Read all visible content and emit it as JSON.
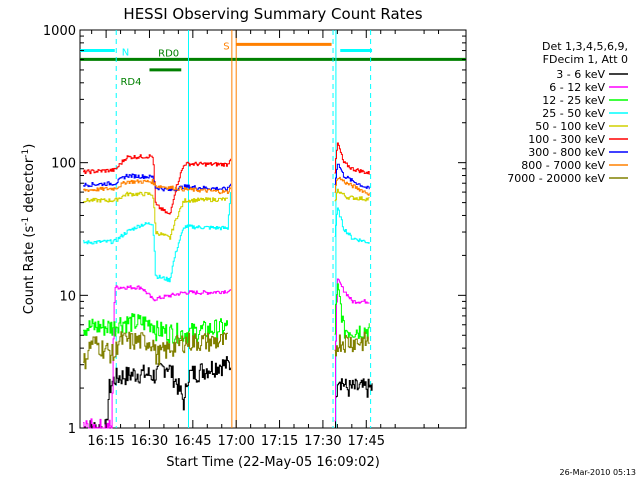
{
  "chart_data": {
    "type": "line",
    "title": "HESSI Observing Summary Count Rates",
    "xlabel": "Start Time (22-May-05 16:09:02)",
    "ylabel_main": "Count Rate (s",
    "ylabel_sup1": "-1",
    "ylabel_mid": " detector",
    "ylabel_sup2": "-1",
    "ylabel_end": ")",
    "ylog": true,
    "ylim": [
      1,
      1000
    ],
    "xlim_minutes": [
      -9.033,
      124.5
    ],
    "x_tick_labels": [
      "16:15",
      "16:30",
      "16:45",
      "17:00",
      "17:15",
      "17:30",
      "17:45"
    ],
    "x_tick_minutes": [
      0,
      15,
      30,
      45,
      60,
      75,
      90
    ],
    "y_tick_values": [
      1,
      10,
      100,
      1000
    ],
    "y_tick_labels": [
      "1",
      "10",
      "100",
      "1000"
    ],
    "legend_header": [
      "Det 1,3,4,5,6,9,",
      "FDecim 1, Att 0"
    ],
    "legend_position": "right",
    "series": [
      {
        "name": "3 - 6 keV",
        "color": "#000000",
        "segments": [
          [
            [
              -8,
              1
            ],
            [
              0,
              1
            ],
            [
              1,
              2
            ],
            [
              3,
              2.4
            ],
            [
              11,
              2.6
            ],
            [
              17,
              2.5
            ],
            [
              21,
              3
            ],
            [
              23,
              2.5
            ],
            [
              27,
              1.5
            ],
            [
              28,
              2.5
            ],
            [
              39,
              3
            ],
            [
              43,
              3
            ]
          ],
          [
            [
              79,
              1
            ],
            [
              80,
              2.5
            ],
            [
              83,
              2
            ],
            [
              89,
              2
            ],
            [
              92,
              2
            ]
          ]
        ]
      },
      {
        "name": "6 - 12 keV",
        "color": "#ff00ff",
        "segments": [
          [
            [
              -8,
              1
            ],
            [
              2,
              1
            ],
            [
              3,
              11.5
            ],
            [
              12,
              11.5
            ],
            [
              16,
              9.3
            ],
            [
              27,
              10.5
            ],
            [
              35,
              10.5
            ],
            [
              43,
              10.8
            ]
          ],
          [
            [
              79,
              1
            ],
            [
              80,
              13
            ],
            [
              82,
              11
            ],
            [
              85,
              9
            ],
            [
              91,
              9
            ]
          ]
        ]
      },
      {
        "name": "12 - 25 keV",
        "color": "#00ff00",
        "segments": [
          [
            [
              -8,
              5.8
            ],
            [
              3,
              5.8
            ],
            [
              4,
              6.3
            ],
            [
              16,
              6.2
            ],
            [
              17,
              5.5
            ],
            [
              22,
              5.3
            ],
            [
              27,
              5.2
            ],
            [
              42,
              5.8
            ]
          ],
          [
            [
              79,
              5.5
            ],
            [
              80,
              12
            ],
            [
              82,
              5.5
            ],
            [
              91,
              5.5
            ]
          ]
        ]
      },
      {
        "name": "25 - 50 keV",
        "color": "#00ffff",
        "segments": [
          [
            [
              -8,
              25
            ],
            [
              3,
              25.5
            ],
            [
              7,
              30
            ],
            [
              12,
              34
            ],
            [
              16,
              35
            ],
            [
              17,
              14
            ],
            [
              22,
              13
            ],
            [
              27,
              33
            ],
            [
              42,
              32
            ],
            [
              43,
              60
            ]
          ],
          [
            [
              79,
              28
            ],
            [
              80,
              45
            ],
            [
              82,
              32
            ],
            [
              85,
              27
            ],
            [
              91,
              25
            ]
          ]
        ]
      },
      {
        "name": "50 - 100 keV",
        "color": "#d0d000",
        "segments": [
          [
            [
              -8,
              52
            ],
            [
              3,
              52
            ],
            [
              7,
              58
            ],
            [
              16,
              58
            ],
            [
              17,
              30
            ],
            [
              22,
              27
            ],
            [
              27,
              52
            ],
            [
              42,
              53
            ]
          ],
          [
            [
              79,
              50
            ],
            [
              80,
              62
            ],
            [
              83,
              55
            ],
            [
              91,
              53
            ]
          ]
        ]
      },
      {
        "name": "100 - 300 keV",
        "color": "#ff0000",
        "segments": [
          [
            [
              -8,
              85
            ],
            [
              3,
              88
            ],
            [
              7,
              110
            ],
            [
              16,
              112
            ],
            [
              17,
              48
            ],
            [
              22,
              40
            ],
            [
              27,
              98
            ],
            [
              42,
              97
            ],
            [
              43,
              110
            ]
          ],
          [
            [
              79,
              85
            ],
            [
              80,
              140
            ],
            [
              82,
              100
            ],
            [
              85,
              90
            ],
            [
              91,
              83
            ]
          ]
        ]
      },
      {
        "name": "300 - 800 keV",
        "color": "#0000ff",
        "segments": [
          [
            [
              -8,
              68
            ],
            [
              3,
              70
            ],
            [
              7,
              80
            ],
            [
              16,
              78
            ],
            [
              17,
              65
            ],
            [
              22,
              62
            ],
            [
              27,
              66
            ],
            [
              42,
              63
            ],
            [
              43,
              70
            ]
          ],
          [
            [
              79,
              68
            ],
            [
              80,
              100
            ],
            [
              82,
              80
            ],
            [
              85,
              73
            ],
            [
              91,
              63
            ]
          ]
        ]
      },
      {
        "name": "800 - 7000 keV",
        "color": "#ff8000",
        "segments": [
          [
            [
              -8,
              62
            ],
            [
              3,
              64
            ],
            [
              7,
              72
            ],
            [
              16,
              72
            ],
            [
              17,
              67
            ],
            [
              22,
              65
            ],
            [
              27,
              63
            ],
            [
              42,
              60
            ],
            [
              43,
              65
            ]
          ],
          [
            [
              79,
              60
            ],
            [
              80,
              78
            ],
            [
              83,
              70
            ],
            [
              91,
              58
            ]
          ]
        ]
      },
      {
        "name": "7000 - 20000 keV",
        "color": "#808000",
        "segments": [
          [
            [
              -8,
              3
            ],
            [
              -5,
              4.5
            ],
            [
              3,
              3.5
            ],
            [
              4,
              4.6
            ],
            [
              16,
              4.5
            ],
            [
              17,
              3.5
            ],
            [
              22,
              4
            ],
            [
              27,
              4.5
            ],
            [
              42,
              4.5
            ]
          ],
          [
            [
              79,
              3.6
            ],
            [
              80,
              4.5
            ],
            [
              91,
              4.5
            ]
          ]
        ]
      }
    ],
    "state_bars": [
      {
        "label": "N",
        "color": "#00ffff",
        "y": 700,
        "ranges": [
          [
            -9,
            3
          ],
          [
            81,
            92
          ]
        ]
      },
      {
        "label": "S",
        "color": "#ff8000",
        "y": 780,
        "ranges": [
          [
            45,
            78
          ]
        ]
      },
      {
        "label": "RD0",
        "color": "#008000",
        "y": 600,
        "ranges": [
          [
            -9,
            124.5
          ]
        ]
      },
      {
        "label": "RD4",
        "color": "#008000",
        "y": 500,
        "ranges": [
          [
            15,
            26
          ]
        ]
      }
    ],
    "vertical_lines": [
      {
        "color": "#00ffff",
        "dashed": true,
        "x": 3.5
      },
      {
        "color": "#00ffff",
        "dashed": false,
        "x": 28.5
      },
      {
        "color": "#ff8000",
        "dashed": false,
        "x": 43.5
      },
      {
        "color": "#ff8000",
        "dashed": false,
        "x": 45
      },
      {
        "color": "#00ffff",
        "dashed": true,
        "x": 78.5
      },
      {
        "color": "#00ffff",
        "dashed": false,
        "x": 79.5
      },
      {
        "color": "#00ffff",
        "dashed": true,
        "x": 91.5
      }
    ],
    "footer_timestamp": "26-Mar-2010 05:13"
  }
}
